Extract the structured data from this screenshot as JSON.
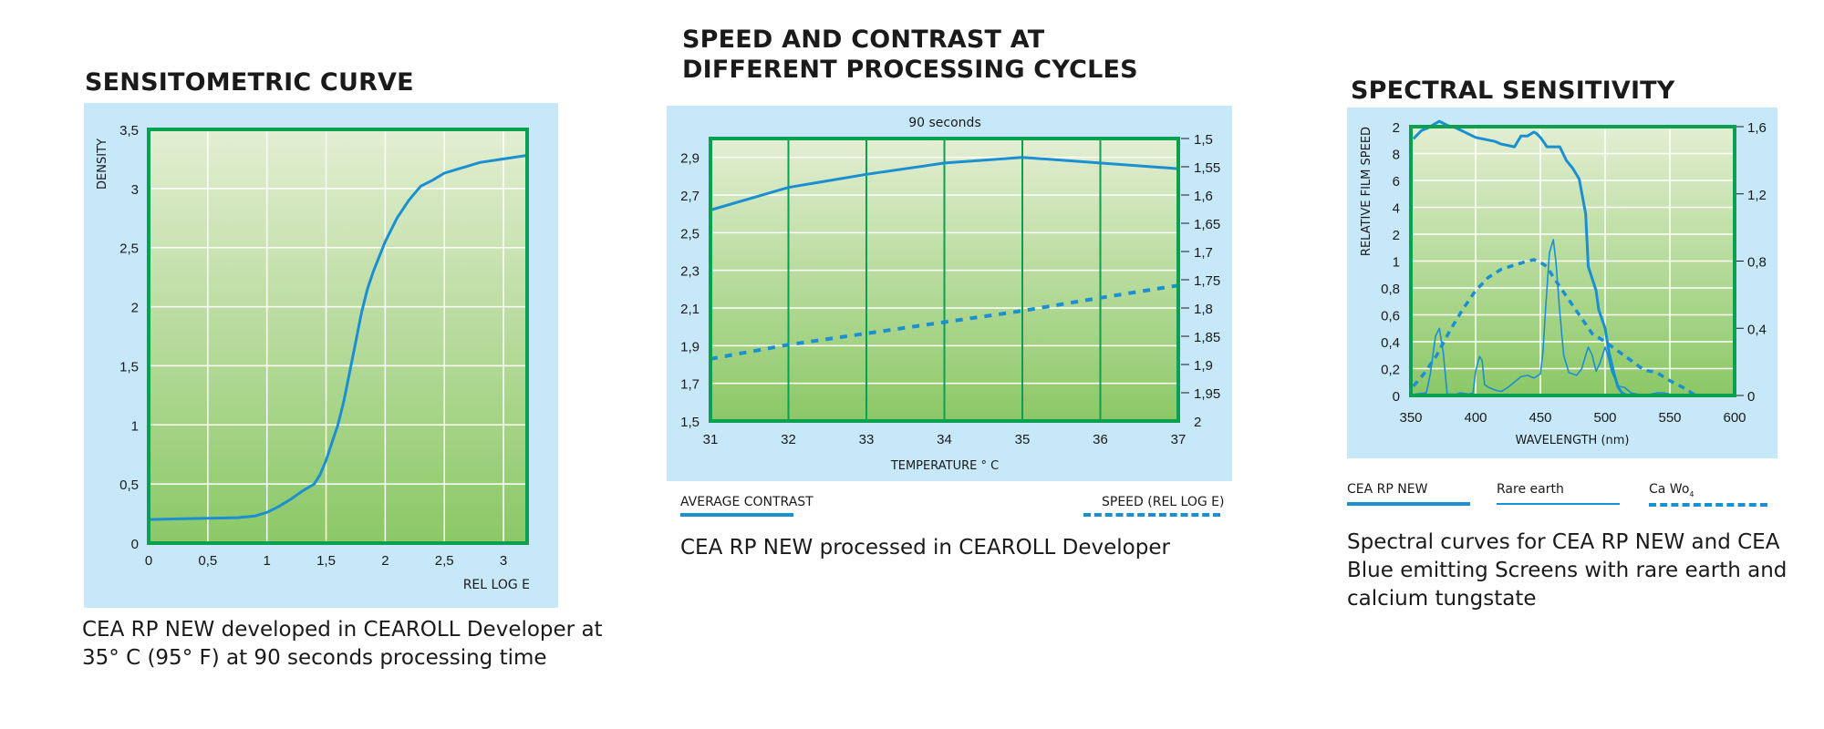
{
  "colors": {
    "panel": "#c7e8f8",
    "plot_top": "#e3eed2",
    "plot_bottom": "#8bc866",
    "frame": "#0aa050",
    "curve": "#1a8fd1",
    "grid": "#ffffff"
  },
  "chart_data": [
    {
      "id": "sensitometric",
      "type": "line",
      "title": "SENSITOMETRIC CURVE",
      "xlabel": "REL LOG E",
      "ylabel": "DENSITY",
      "xlim": [
        0,
        3.2
      ],
      "ylim": [
        0,
        3.5
      ],
      "grid": true,
      "x_ticks": [
        0,
        0.5,
        1,
        1.5,
        2,
        2.5,
        3
      ],
      "x_tick_labels": [
        "0",
        "0,5",
        "1",
        "1,5",
        "2",
        "2,5",
        "3"
      ],
      "y_ticks": [
        0,
        0.5,
        1,
        1.5,
        2,
        2.5,
        3,
        3.5
      ],
      "y_tick_labels": [
        "0",
        "0,5",
        "1",
        "1,5",
        "2",
        "2,5",
        "3",
        "3,5"
      ],
      "series": [
        {
          "name": "CEA RP NEW",
          "style": "solid",
          "x": [
            0,
            0.25,
            0.5,
            0.75,
            0.9,
            1.0,
            1.1,
            1.2,
            1.3,
            1.4,
            1.45,
            1.5,
            1.55,
            1.6,
            1.65,
            1.7,
            1.75,
            1.8,
            1.85,
            1.9,
            2.0,
            2.1,
            2.2,
            2.3,
            2.4,
            2.45,
            2.5,
            2.6,
            2.7,
            2.8,
            3.0,
            3.2
          ],
          "y": [
            0.2,
            0.205,
            0.21,
            0.215,
            0.23,
            0.26,
            0.31,
            0.37,
            0.44,
            0.5,
            0.58,
            0.7,
            0.85,
            1.0,
            1.2,
            1.45,
            1.7,
            1.95,
            2.15,
            2.3,
            2.55,
            2.75,
            2.9,
            3.02,
            3.07,
            3.1,
            3.13,
            3.16,
            3.19,
            3.22,
            3.25,
            3.28
          ]
        }
      ],
      "caption": "CEA RP NEW developed in CEAROLL Developer at 35° C (95° F) at 90 seconds processing time"
    },
    {
      "id": "speed-contrast",
      "type": "line",
      "title": "SPEED AND CONTRAST AT DIFFERENT PROCESSING CYCLES",
      "subtitle": "90 seconds",
      "xlabel": "TEMPERATURE ° C",
      "ylabel_left": "AVERAGE CONTRAST",
      "ylabel_right": "SPEED (REL LOG E)",
      "xlim": [
        31,
        37
      ],
      "ylim_left": [
        1.5,
        3.0
      ],
      "ylim_right": [
        1.5,
        2.0
      ],
      "right_axis_inverted": true,
      "grid": true,
      "x_ticks": [
        31,
        32,
        33,
        34,
        35,
        36,
        37
      ],
      "x_tick_labels": [
        "31",
        "32",
        "33",
        "34",
        "35",
        "36",
        "37"
      ],
      "y_left_ticks": [
        1.5,
        1.7,
        1.9,
        2.1,
        2.3,
        2.5,
        2.7,
        2.9
      ],
      "y_left_tick_labels": [
        "1,5",
        "1,7",
        "1,9",
        "2,1",
        "2,3",
        "2,5",
        "2,7",
        "2,9"
      ],
      "y_right_ticks": [
        1.5,
        1.55,
        1.6,
        1.65,
        1.7,
        1.75,
        1.8,
        1.85,
        1.9,
        1.95,
        2.0
      ],
      "y_right_tick_labels": [
        "1,5",
        "1,55",
        "1,6",
        "1,65",
        "1,7",
        "1,75",
        "1,8",
        "1,85",
        "1,9",
        "1,95",
        "2"
      ],
      "series": [
        {
          "name": "AVERAGE CONTRAST",
          "axis": "left",
          "style": "solid",
          "x": [
            31,
            32,
            33,
            34,
            35,
            36,
            37
          ],
          "y": [
            2.62,
            2.74,
            2.81,
            2.87,
            2.9,
            2.87,
            2.84
          ]
        },
        {
          "name": "SPEED (REL LOG E)",
          "axis": "right",
          "style": "dashed",
          "x": [
            31,
            32,
            33,
            34,
            35,
            36,
            37
          ],
          "y": [
            1.89,
            1.865,
            1.845,
            1.825,
            1.805,
            1.782,
            1.76
          ]
        }
      ],
      "legend": [
        {
          "label": "AVERAGE CONTRAST",
          "style": "solid"
        },
        {
          "label": "SPEED (REL LOG E)",
          "style": "dashed"
        }
      ],
      "caption": "CEA RP NEW processed in CEAROLL Developer"
    },
    {
      "id": "spectral",
      "type": "line",
      "title": "SPECTRAL SENSITIVITY",
      "xlabel": "WAVELENGTH (nm)",
      "ylabel": "RELATIVE FILM SPEED",
      "xlim": [
        350,
        600
      ],
      "ylim_right": [
        0,
        1.6
      ],
      "grid": true,
      "x_ticks": [
        350,
        400,
        450,
        500,
        550,
        600
      ],
      "x_tick_labels": [
        "350",
        "400",
        "450",
        "500",
        "550",
        "600"
      ],
      "y_left_tick_labels": [
        "0",
        "0,2",
        "0,4",
        "0,6",
        "0,8",
        "1",
        "2",
        "4",
        "6",
        "8",
        "2"
      ],
      "y_right_ticks": [
        0,
        0.4,
        0.8,
        1.2,
        1.6
      ],
      "y_right_tick_labels": [
        "0",
        "0,4",
        "0,8",
        "1,2",
        "1,6"
      ],
      "note": "Left axis is a non-linear (stacked) scale; series values are given in left-axis grid units 0-10 where each grid step is one labeled tick.",
      "series": [
        {
          "name": "CEA RP NEW",
          "style": "solid-thick",
          "x": [
            352,
            358,
            363,
            372,
            378,
            385,
            400,
            405,
            415,
            420,
            425,
            430,
            435,
            440,
            445,
            447,
            450,
            453,
            455,
            460,
            465,
            470,
            475,
            480,
            485,
            487,
            493,
            495,
            500,
            503,
            507,
            510,
            513,
            517
          ],
          "y": [
            9.55,
            9.85,
            9.95,
            10.2,
            10.05,
            9.95,
            9.6,
            9.55,
            9.45,
            9.35,
            9.3,
            9.25,
            9.65,
            9.65,
            9.8,
            9.75,
            9.6,
            9.4,
            9.25,
            9.25,
            9.25,
            8.75,
            8.45,
            8.05,
            6.75,
            4.8,
            3.9,
            3.2,
            2.5,
            1.6,
            0.8,
            0.3,
            0.1,
            0
          ]
        },
        {
          "name": "Rare earth",
          "style": "solid-thin",
          "x": [
            353,
            362,
            365,
            369,
            372,
            375,
            378,
            385,
            388,
            395,
            398,
            400,
            403,
            405,
            407,
            410,
            415,
            420,
            425,
            430,
            435,
            440,
            445,
            450,
            452,
            454,
            457,
            460,
            462,
            465,
            468,
            472,
            478,
            482,
            485,
            487,
            490,
            493,
            496,
            500,
            502,
            505,
            510,
            515,
            520,
            530,
            540,
            545,
            550
          ],
          "y": [
            0.05,
            0.1,
            0.8,
            2.2,
            2.5,
            1.6,
            0.05,
            0.05,
            0.1,
            0.05,
            0.1,
            0.9,
            1.45,
            1.3,
            0.4,
            0.3,
            0.2,
            0.15,
            0.3,
            0.5,
            0.7,
            0.75,
            0.65,
            0.8,
            1.6,
            3.2,
            5.3,
            5.8,
            5.0,
            3.1,
            1.5,
            0.85,
            0.75,
            1.0,
            1.5,
            1.8,
            1.5,
            0.9,
            1.2,
            1.8,
            1.5,
            0.9,
            0.35,
            0.3,
            0.1,
            0,
            0.1,
            0.1,
            0.05
          ]
        },
        {
          "name": "Ca Wo4",
          "style": "dashed",
          "x": [
            352,
            360,
            370,
            380,
            390,
            400,
            410,
            420,
            430,
            440,
            445,
            450,
            455,
            460,
            470,
            480,
            490,
            500,
            510,
            520,
            530,
            540,
            550,
            560,
            570
          ],
          "y": [
            0.35,
            0.8,
            1.5,
            2.4,
            3.2,
            3.9,
            4.4,
            4.7,
            4.85,
            5.0,
            5.05,
            4.95,
            4.8,
            4.4,
            3.7,
            3.0,
            2.3,
            2.0,
            1.65,
            1.3,
            0.95,
            0.85,
            0.55,
            0.3,
            0
          ]
        }
      ],
      "legend": [
        {
          "label": "CEA RP NEW",
          "style": "solid-thick"
        },
        {
          "label": "Rare earth",
          "style": "solid-thin"
        },
        {
          "label": "Ca Wo",
          "subscript": "4",
          "style": "dashed"
        }
      ],
      "caption": "Spectral curves for CEA RP NEW and CEA Blue emitting Screens with rare earth and calcium tungstate"
    }
  ]
}
